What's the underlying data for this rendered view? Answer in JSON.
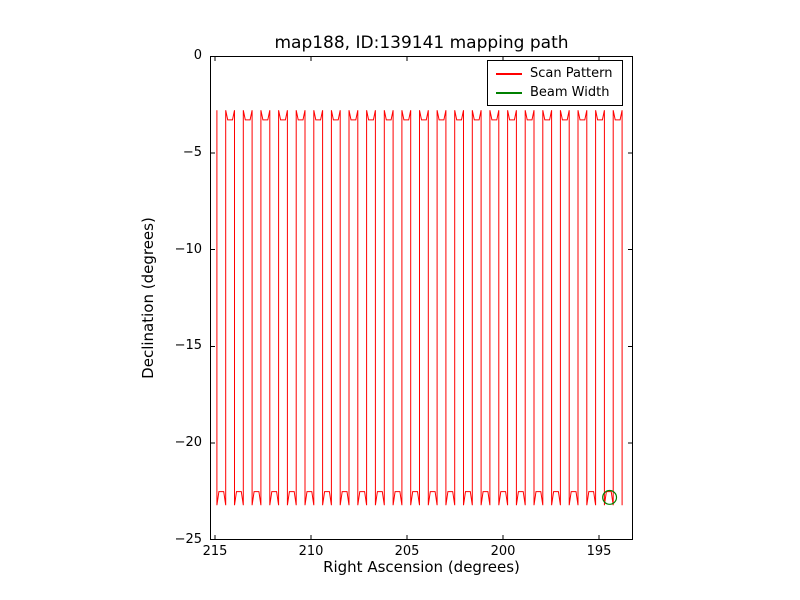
{
  "figure": {
    "background": "#ffffff"
  },
  "chart": {
    "title": "map188, ID:139141 mapping path",
    "xlabel": "Right Ascension (degrees)",
    "ylabel": "Declination (degrees)"
  },
  "legend": {
    "position": "upper right",
    "items": [
      {
        "label": "Scan Pattern",
        "color": "#ff0000"
      },
      {
        "label": "Beam Width",
        "color": "#008000"
      }
    ]
  },
  "axes": {
    "frame_color": "#000000",
    "x": {
      "left_value": 215.26,
      "right_value": 193.23,
      "inverted": true,
      "ticks": [
        {
          "v": 215,
          "label": "215"
        },
        {
          "v": 210,
          "label": "210"
        },
        {
          "v": 205,
          "label": "205"
        },
        {
          "v": 200,
          "label": "200"
        },
        {
          "v": 195,
          "label": "195"
        }
      ]
    },
    "y": {
      "top_value": 0,
      "bottom_value": -25,
      "ticks": [
        {
          "v": 0,
          "label": "0"
        },
        {
          "v": -5,
          "label": "−5"
        },
        {
          "v": -10,
          "label": "−10"
        },
        {
          "v": -15,
          "label": "−15"
        },
        {
          "v": -20,
          "label": "−20"
        },
        {
          "v": -25,
          "label": "−25"
        }
      ]
    }
  },
  "chart_data": {
    "type": "line",
    "title": "map188, ID:139141 mapping path",
    "xlabel": "Right Ascension (degrees)",
    "ylabel": "Declination (degrees)",
    "x_range": [
      215.26,
      193.23
    ],
    "x_inverted": true,
    "y_range": [
      0,
      -25
    ],
    "grid": false,
    "legend_position": "upper right",
    "series": [
      {
        "name": "Scan Pattern",
        "color": "#ff0000",
        "pattern": "boustrophedon_raster_scan",
        "description": "Vertical declination scans stepping in right ascension, connected alternately at top and bottom with small hook turnarounds",
        "ra_start": 214.9,
        "ra_end": 193.8,
        "n_scans": 47,
        "dec_top": -2.8,
        "dec_bottom": -23.2,
        "dec_top_connector": -3.3,
        "dec_bottom_connector": -22.5
      },
      {
        "name": "Beam Width",
        "color": "#008000",
        "shape": "circle",
        "center_ra": 194.45,
        "center_dec": -22.8,
        "radius_deg": 0.36
      }
    ]
  }
}
